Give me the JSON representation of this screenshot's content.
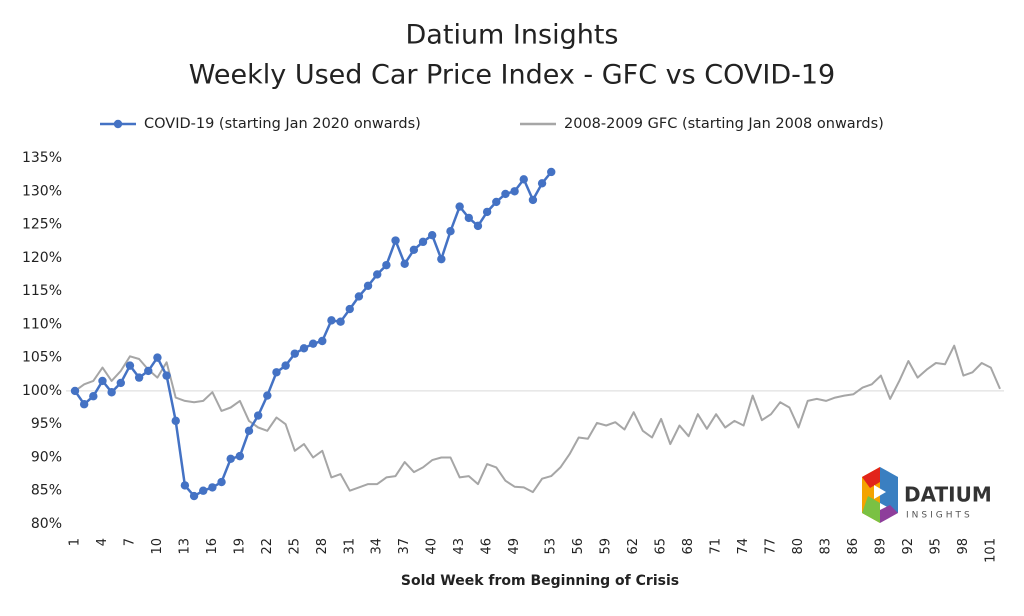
{
  "chart_data": {
    "type": "line",
    "title": "Datium Insights",
    "subtitle": "Weekly Used Car Price Index - GFC vs COVID-19",
    "x_label": "Sold Week from Beginning of Crisis",
    "categories": [
      1,
      null,
      null,
      4,
      null,
      null,
      7,
      null,
      null,
      10,
      null,
      null,
      13,
      null,
      null,
      16,
      null,
      null,
      19,
      null,
      null,
      22,
      null,
      null,
      25,
      null,
      null,
      28,
      null,
      null,
      31,
      null,
      null,
      34,
      null,
      null,
      37,
      null,
      null,
      40,
      null,
      null,
      43,
      null,
      null,
      46,
      null,
      null,
      49,
      null,
      null,
      null,
      53,
      null,
      null,
      56,
      null,
      null,
      59,
      null,
      null,
      62,
      null,
      null,
      65,
      null,
      null,
      68,
      null,
      null,
      71,
      null,
      null,
      74,
      null,
      null,
      77,
      null,
      null,
      80,
      null,
      null,
      83,
      null,
      null,
      86,
      null,
      null,
      89,
      null,
      null,
      92,
      null,
      null,
      95,
      null,
      null,
      98,
      null,
      null,
      101,
      null
    ],
    "series": [
      {
        "name": "COVID-19 (starting Jan 2020 onwards)",
        "color": "#4472c4",
        "markers": true,
        "values": [
          100,
          98,
          99.2,
          101.5,
          99.8,
          101.2,
          103.8,
          102,
          103,
          105,
          102.3,
          95.5,
          85.8,
          84.2,
          85,
          85.5,
          86.3,
          89.8,
          90.2,
          94,
          96.3,
          99.3,
          102.8,
          103.8,
          105.6,
          106.4,
          107.1,
          107.5,
          110.6,
          110.4,
          112.3,
          114.2,
          115.8,
          117.5,
          118.9,
          122.6,
          119.1,
          121.2,
          122.4,
          123.4,
          119.8,
          124,
          127.7,
          126,
          124.8,
          126.9,
          128.4,
          129.6,
          130,
          131.8,
          128.7,
          131.2,
          132.9,
          null,
          null,
          null,
          null,
          null,
          null,
          null,
          null,
          null,
          null,
          null,
          null,
          null,
          null,
          null,
          null,
          null,
          null,
          null,
          null,
          null,
          null,
          null,
          null,
          null,
          null,
          null,
          null,
          null,
          null,
          null,
          null,
          null,
          null,
          null,
          null,
          null,
          null,
          null,
          null,
          null,
          null,
          null,
          null,
          null,
          null,
          null,
          null,
          null
        ]
      },
      {
        "name": "2008-2009 GFC (starting Jan 2008 onwards)",
        "color": "#a6a6a6",
        "markers": false,
        "values": [
          100,
          101,
          101.5,
          103.5,
          101.5,
          103,
          105.2,
          104.8,
          103.2,
          102,
          104.3,
          99,
          98.5,
          98.3,
          98.5,
          99.8,
          97,
          97.5,
          98.5,
          95.5,
          94.5,
          94,
          96,
          95,
          91,
          92,
          90,
          91,
          87,
          87.5,
          85,
          85.5,
          86,
          86,
          87,
          87.2,
          89.3,
          87.8,
          88.5,
          89.6,
          90,
          90,
          87,
          87.2,
          86,
          89,
          88.5,
          86.5,
          85.6,
          85.5,
          84.8,
          86.8,
          87.2,
          88.5,
          90.5,
          93,
          92.8,
          95.2,
          94.8,
          95.3,
          94.2,
          96.8,
          94,
          93,
          95.8,
          92,
          94.8,
          93.2,
          96.5,
          94.3,
          96.5,
          94.5,
          95.5,
          94.8,
          99.3,
          95.6,
          96.5,
          98.3,
          97.5,
          94.5,
          98.5,
          98.8,
          98.5,
          99,
          99.3,
          99.5,
          100.5,
          101,
          102.3,
          98.8,
          101.5,
          104.5,
          102,
          103.2,
          104.2,
          104,
          106.8,
          102.3,
          102.8,
          104.2,
          103.5,
          100.3
        ]
      }
    ],
    "ylim": [
      80,
      135
    ],
    "yticks": [
      {
        "value": 80,
        "label": "80%"
      },
      {
        "value": 85,
        "label": "85%"
      },
      {
        "value": 90,
        "label": "90%"
      },
      {
        "value": 95,
        "label": "95%"
      },
      {
        "value": 100,
        "label": "100%"
      },
      {
        "value": 105,
        "label": "105%"
      },
      {
        "value": 110,
        "label": "110%"
      },
      {
        "value": 115,
        "label": "115%"
      },
      {
        "value": 120,
        "label": "120%"
      },
      {
        "value": 125,
        "label": "125%"
      },
      {
        "value": 130,
        "label": "130%"
      },
      {
        "value": 135,
        "label": "135%"
      }
    ],
    "reference_line": 100,
    "legend": "top"
  },
  "logo": {
    "name": "DATIUM",
    "tagline": "INSIGHTS"
  }
}
